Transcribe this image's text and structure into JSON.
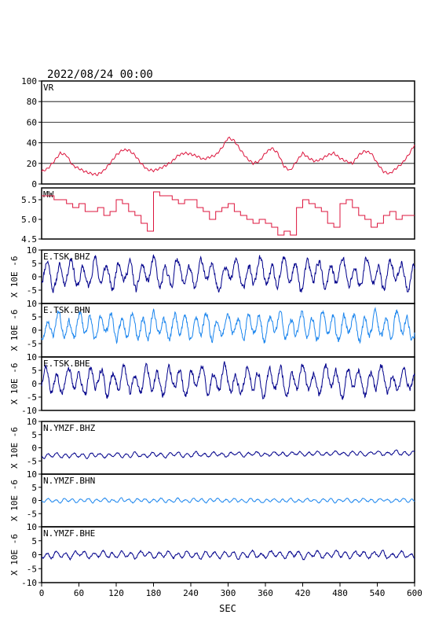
{
  "header": {
    "datetime": "2022/08/24  00:00"
  },
  "xaxis": {
    "label": "SEC",
    "ticks": [
      0,
      60,
      120,
      180,
      240,
      300,
      360,
      420,
      480,
      540,
      600
    ],
    "range": [
      0,
      600
    ]
  },
  "colors": {
    "vr": "#dc143c",
    "mw": "#dc143c",
    "navy": "#00008b",
    "blue": "#1c86ee"
  },
  "chart_data": [
    {
      "type": "line",
      "panel": "vr",
      "label": "VR",
      "ylim": [
        0,
        100
      ],
      "yticks": [
        0,
        20,
        40,
        60,
        80,
        100
      ],
      "grid": true,
      "series": [
        {
          "x": [
            0,
            10,
            20,
            30,
            40,
            50,
            60,
            70,
            80,
            90,
            100,
            110,
            120,
            130,
            140,
            150,
            160,
            170,
            180,
            190,
            200,
            210,
            220,
            230,
            240,
            250,
            260,
            270,
            280,
            290,
            300,
            310,
            320,
            330,
            340,
            350,
            360,
            370,
            380,
            390,
            400,
            410,
            420,
            430,
            440,
            450,
            460,
            470,
            480,
            490,
            500,
            510,
            520,
            530,
            540,
            550,
            560,
            570,
            580,
            590,
            600
          ],
          "values": [
            12,
            15,
            22,
            30,
            28,
            18,
            15,
            12,
            10,
            9,
            13,
            20,
            28,
            33,
            33,
            28,
            20,
            14,
            13,
            15,
            18,
            22,
            28,
            30,
            29,
            27,
            24,
            26,
            28,
            35,
            45,
            42,
            33,
            25,
            20,
            22,
            30,
            35,
            30,
            17,
            13,
            22,
            30,
            25,
            22,
            24,
            28,
            30,
            25,
            22,
            20,
            28,
            32,
            30,
            20,
            12,
            10,
            15,
            20,
            28,
            38
          ]
        }
      ]
    },
    {
      "type": "line",
      "panel": "mw",
      "label": "MW",
      "ylim": [
        4.5,
        5.8
      ],
      "yticks": [
        4.5,
        5.0,
        5.5
      ],
      "grid": false,
      "series": [
        {
          "x": [
            0,
            10,
            20,
            30,
            40,
            50,
            60,
            70,
            80,
            90,
            100,
            110,
            120,
            130,
            140,
            150,
            160,
            170,
            180,
            190,
            200,
            210,
            220,
            230,
            240,
            250,
            260,
            270,
            280,
            290,
            300,
            310,
            320,
            330,
            340,
            350,
            360,
            370,
            380,
            390,
            400,
            410,
            420,
            430,
            440,
            450,
            460,
            470,
            480,
            490,
            500,
            510,
            520,
            530,
            540,
            550,
            560,
            570,
            580,
            590,
            600
          ],
          "values": [
            5.6,
            5.6,
            5.5,
            5.5,
            5.4,
            5.3,
            5.4,
            5.2,
            5.2,
            5.3,
            5.1,
            5.2,
            5.5,
            5.4,
            5.2,
            5.1,
            4.9,
            4.7,
            5.7,
            5.6,
            5.6,
            5.5,
            5.4,
            5.5,
            5.5,
            5.3,
            5.2,
            5.0,
            5.2,
            5.3,
            5.4,
            5.2,
            5.1,
            5.0,
            4.9,
            5.0,
            4.9,
            4.8,
            4.6,
            4.7,
            4.6,
            5.3,
            5.5,
            5.4,
            5.3,
            5.2,
            4.9,
            4.8,
            5.4,
            5.5,
            5.3,
            5.1,
            5.0,
            4.8,
            4.9,
            5.1,
            5.2,
            5.0,
            5.1,
            5.1,
            5.1
          ]
        }
      ]
    },
    {
      "type": "line",
      "panel": "seis",
      "station": "E.TSK.BHZ",
      "unitlabel": "X 10E -6",
      "ylim": [
        -10,
        10
      ],
      "yticks": [
        -5,
        0,
        5,
        10
      ],
      "color": "navy",
      "seed": 11,
      "amp": 4.2,
      "offset": 1.0,
      "period": 19
    },
    {
      "type": "line",
      "panel": "seis",
      "station": "E.TSK.BHN",
      "unitlabel": "X 10E -6",
      "ylim": [
        -10,
        10
      ],
      "yticks": [
        -5,
        0,
        5,
        10
      ],
      "color": "blue",
      "seed": 23,
      "amp": 3.8,
      "offset": 1.5,
      "period": 17
    },
    {
      "type": "line",
      "panel": "seis",
      "station": "E.TSK.BHE",
      "unitlabel": "X 10E -6",
      "ylim": [
        -10,
        10
      ],
      "yticks": [
        -10,
        -5,
        0,
        5,
        10
      ],
      "color": "navy",
      "seed": 37,
      "amp": 4.0,
      "offset": 1.0,
      "period": 18
    },
    {
      "type": "line",
      "panel": "seis",
      "station": "N.YMZF.BHZ",
      "unitlabel": "X 10E -6",
      "ylim": [
        -10,
        10
      ],
      "yticks": [
        -5,
        0,
        5,
        10
      ],
      "color": "navy",
      "seed": 41,
      "amp": 0.7,
      "offset": -3.0,
      "period": 14,
      "trend": 1.0
    },
    {
      "type": "line",
      "panel": "seis",
      "station": "N.YMZF.BHN",
      "unitlabel": "X 10E -6",
      "ylim": [
        -10,
        10
      ],
      "yticks": [
        -5,
        0,
        5,
        10
      ],
      "color": "blue",
      "seed": 53,
      "amp": 0.6,
      "offset": 0.0,
      "period": 13
    },
    {
      "type": "line",
      "panel": "seis",
      "station": "N.YMZF.BHE",
      "unitlabel": "X 10E -6",
      "ylim": [
        -10,
        10
      ],
      "yticks": [
        -10,
        -5,
        0,
        5,
        10
      ],
      "color": "navy",
      "seed": 67,
      "amp": 1.0,
      "offset": 0.0,
      "period": 15
    }
  ]
}
